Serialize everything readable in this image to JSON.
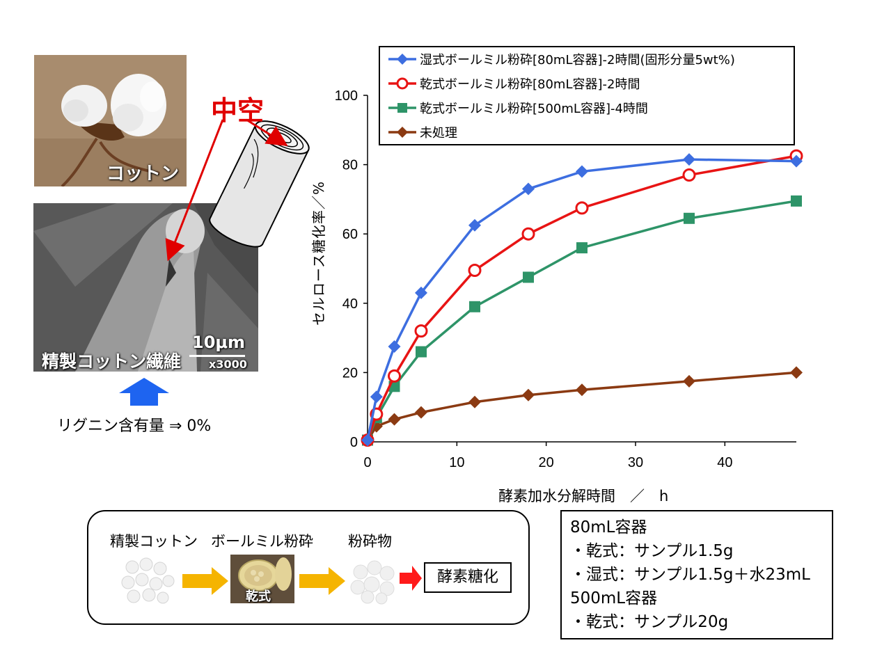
{
  "photos": {
    "cotton_label": "コットン",
    "fiber_label": "精製コットン繊維",
    "scale_value": "10μm",
    "magnification": "x3000"
  },
  "hollow_label": "中空",
  "lignin_note": "リグニン含有量 ⇒ 0%",
  "flow": {
    "step1": "精製コットン",
    "step2": "ボールミル粉砕",
    "step3": "粉砕物",
    "jar_label": "乾式",
    "final": "酵素糖化"
  },
  "conditions": [
    "80mL容器",
    "・乾式：サンプル1.5g",
    "・湿式：サンプル1.5g＋水23mL",
    "500mL容器",
    "・乾式：サンプル20g"
  ],
  "chart_data": {
    "type": "line",
    "title": "",
    "xlabel": "酵素加水分解時間　／　h",
    "ylabel": "セルロース糖化率／%",
    "xlim": [
      0,
      48
    ],
    "ylim": [
      0,
      100
    ],
    "xticks": [
      0,
      10,
      20,
      30,
      40
    ],
    "yticks": [
      0,
      20,
      40,
      60,
      80,
      100
    ],
    "legend_position": "top",
    "series": [
      {
        "name": "湿式ボールミル粉砕[80mL容器]-2時間(固形分量5wt%)",
        "color": "#3d6ee0",
        "marker": "diamond",
        "x": [
          0,
          1,
          3,
          6,
          12,
          18,
          24,
          36,
          48
        ],
        "y": [
          0.5,
          13,
          27.5,
          43,
          62.5,
          73,
          78,
          81.5,
          81
        ]
      },
      {
        "name": "乾式ボールミル粉砕[80mL容器]-2時間",
        "color": "#e81414",
        "marker": "circle-open",
        "x": [
          0,
          1,
          3,
          6,
          12,
          18,
          24,
          36,
          48
        ],
        "y": [
          0.5,
          8,
          19,
          32,
          49.5,
          60,
          67.5,
          77,
          82.5
        ]
      },
      {
        "name": "乾式ボールミル粉砕[500mL容器]-4時間",
        "color": "#2e9468",
        "marker": "square",
        "x": [
          0,
          1,
          3,
          6,
          12,
          18,
          24,
          36,
          48
        ],
        "y": [
          0.5,
          7,
          16,
          26,
          39,
          47.5,
          56,
          64.5,
          69.5
        ]
      },
      {
        "name": "未処理",
        "color": "#8b3a12",
        "marker": "diamond",
        "x": [
          0,
          1,
          3,
          6,
          12,
          18,
          24,
          36,
          48
        ],
        "y": [
          0.5,
          4.5,
          6.5,
          8.5,
          11.5,
          13.5,
          15,
          17.5,
          20
        ]
      }
    ]
  }
}
